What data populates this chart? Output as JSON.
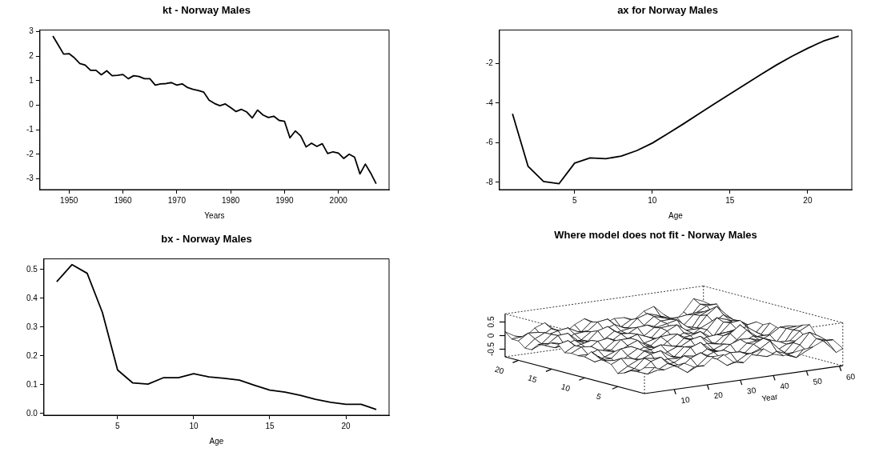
{
  "chart_data": [
    {
      "type": "line",
      "title": "kt - Norway Males",
      "xlabel": "Years",
      "color": "#000000",
      "x": [
        1947,
        1948,
        1949,
        1950,
        1951,
        1952,
        1953,
        1954,
        1955,
        1956,
        1957,
        1958,
        1959,
        1960,
        1961,
        1962,
        1963,
        1964,
        1965,
        1966,
        1967,
        1968,
        1969,
        1970,
        1971,
        1972,
        1973,
        1974,
        1975,
        1976,
        1977,
        1978,
        1979,
        1980,
        1981,
        1982,
        1983,
        1984,
        1985,
        1986,
        1987,
        1988,
        1989,
        1990,
        1991,
        1992,
        1993,
        1994,
        1995,
        1996,
        1997,
        1998,
        1999,
        2000,
        2001,
        2002,
        2003,
        2004,
        2005,
        2006,
        2007
      ],
      "values": [
        2.82,
        2.45,
        2.08,
        2.1,
        1.93,
        1.7,
        1.63,
        1.42,
        1.42,
        1.24,
        1.4,
        1.2,
        1.22,
        1.25,
        1.08,
        1.2,
        1.17,
        1.08,
        1.08,
        0.82,
        0.87,
        0.88,
        0.92,
        0.82,
        0.87,
        0.72,
        0.65,
        0.6,
        0.53,
        0.2,
        0.07,
        -0.02,
        0.05,
        -0.1,
        -0.26,
        -0.17,
        -0.28,
        -0.52,
        -0.2,
        -0.4,
        -0.5,
        -0.45,
        -0.62,
        -0.66,
        -1.33,
        -1.05,
        -1.25,
        -1.7,
        -1.55,
        -1.68,
        -1.57,
        -1.97,
        -1.9,
        -1.95,
        -2.17,
        -2.0,
        -2.12,
        -2.8,
        -2.4,
        -2.77,
        -3.2
      ],
      "xlim": [
        1944.6,
        2009.4
      ],
      "xticks": [
        1950,
        1960,
        1970,
        1980,
        1990,
        2000
      ],
      "ylim": [
        -3.44,
        3.06
      ],
      "yticks": [
        -3,
        -2,
        -1,
        0,
        1,
        2,
        3
      ]
    },
    {
      "type": "line",
      "title": "ax for Norway Males",
      "xlabel": "Age",
      "color": "#000000",
      "x": [
        1,
        2,
        3,
        4,
        5,
        6,
        7,
        8,
        9,
        10,
        11,
        12,
        13,
        14,
        15,
        16,
        17,
        18,
        19,
        20,
        21,
        22
      ],
      "values": [
        -4.54,
        -7.19,
        -7.96,
        -8.07,
        -7.03,
        -6.77,
        -6.81,
        -6.68,
        -6.4,
        -6.02,
        -5.54,
        -5.05,
        -4.54,
        -4.03,
        -3.54,
        -3.04,
        -2.55,
        -2.07,
        -1.63,
        -1.23,
        -0.87,
        -0.61
      ],
      "xlim": [
        0.16,
        22.84
      ],
      "xticks": [
        5,
        10,
        15,
        20
      ],
      "ylim": [
        -8.37,
        -0.31
      ],
      "yticks": [
        -8,
        -6,
        -4,
        -2
      ]
    },
    {
      "type": "line",
      "title": "bx - Norway Males",
      "xlabel": "Age",
      "color": "#000000",
      "x": [
        1,
        2,
        3,
        4,
        5,
        6,
        7,
        8,
        9,
        10,
        11,
        12,
        13,
        14,
        15,
        16,
        17,
        18,
        19,
        20,
        21,
        22
      ],
      "values": [
        0.458,
        0.517,
        0.487,
        0.351,
        0.151,
        0.106,
        0.102,
        0.124,
        0.124,
        0.138,
        0.127,
        0.122,
        0.116,
        0.098,
        0.081,
        0.074,
        0.063,
        0.049,
        0.039,
        0.032,
        0.032,
        0.014
      ],
      "xlim": [
        0.16,
        22.84
      ],
      "xticks": [
        5,
        10,
        15,
        20
      ],
      "ylim": [
        -0.006,
        0.537
      ],
      "yticks": [
        {
          "value": 0,
          "label": "0.0"
        },
        0.1,
        0.2,
        0.3,
        0.4,
        0.5
      ]
    },
    {
      "type": "other",
      "title": "Where model does not fit - Norway Males",
      "xlabel": "Year",
      "annotations": [
        "-0.5",
        "0",
        "0.5",
        "20",
        "15",
        "10",
        "5",
        "10",
        "20",
        "30",
        "40",
        "50",
        "60"
      ]
    }
  ]
}
